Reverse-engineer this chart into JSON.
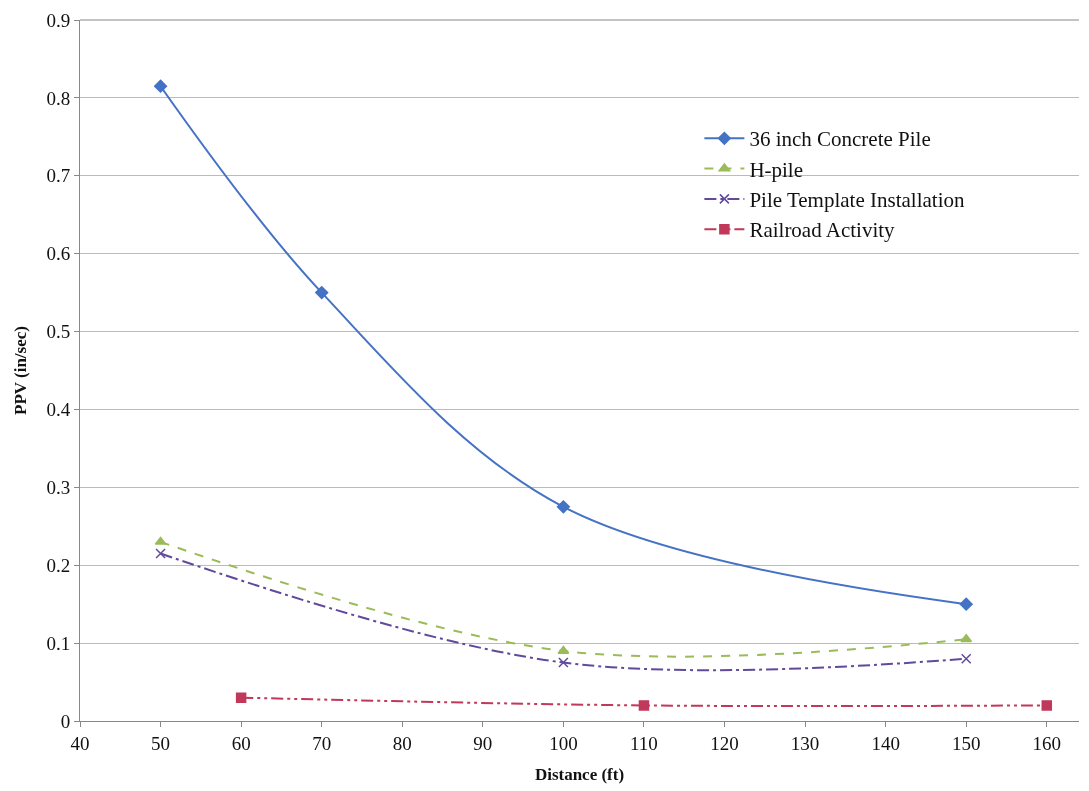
{
  "chart_data": {
    "type": "line",
    "xlabel": "Distance (ft)",
    "ylabel": "PPV (in/sec)",
    "xlim": [
      40,
      164
    ],
    "xticks": [
      40,
      50,
      60,
      70,
      80,
      90,
      100,
      110,
      120,
      130,
      140,
      150,
      160
    ],
    "ylim": [
      0,
      0.9
    ],
    "yticks": [
      0,
      0.1,
      0.2,
      0.3,
      0.4,
      0.5,
      0.6,
      0.7,
      0.8,
      0.9
    ],
    "grid": "y",
    "legend": "top right",
    "series": [
      {
        "name": "36 inch Concrete Pile",
        "color": "#4472c4",
        "x": [
          50,
          70,
          100,
          150
        ],
        "values": [
          0.815,
          0.55,
          0.275,
          0.15
        ],
        "marker": "diamond",
        "line_style": "solid"
      },
      {
        "name": "H-pile",
        "color": "#9bbb59",
        "x": [
          50,
          100,
          150
        ],
        "values": [
          0.23,
          0.09,
          0.105
        ],
        "marker": "triangle",
        "line_style": "dashed"
      },
      {
        "name": "Pile Template Installation",
        "color": "#604a9b",
        "x": [
          50,
          100,
          150
        ],
        "values": [
          0.215,
          0.075,
          0.08
        ],
        "marker": "cross",
        "line_style": "dashdot"
      },
      {
        "name": "Railroad Activity",
        "color": "#c0395a",
        "x": [
          60,
          110,
          160
        ],
        "values": [
          0.03,
          0.02,
          0.02
        ],
        "marker": "square",
        "line_style": "dashdotdot"
      }
    ]
  }
}
